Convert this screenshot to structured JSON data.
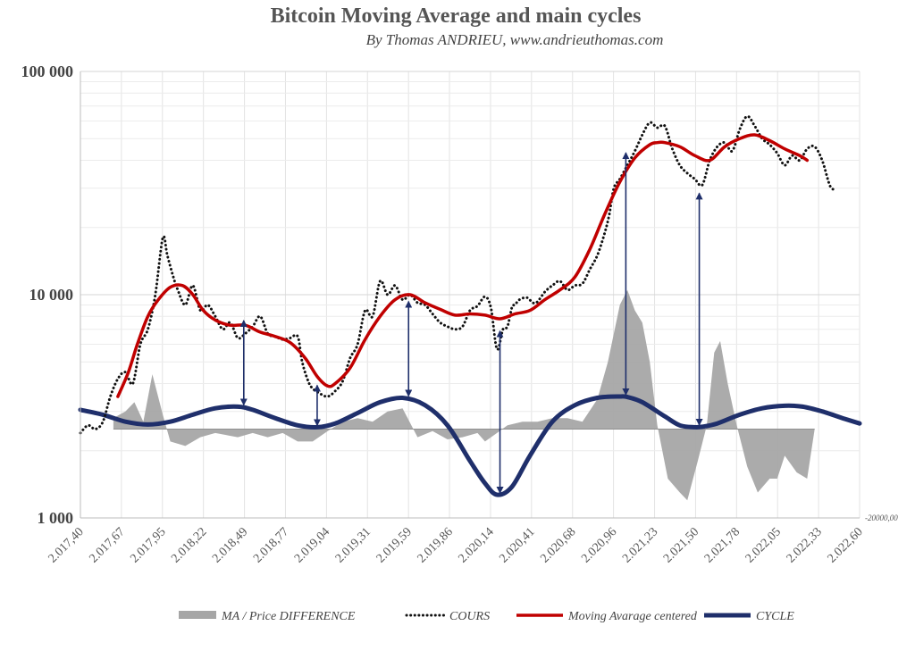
{
  "chart_data": {
    "type": "line",
    "title": "Bitcoin Moving Average and main cycles",
    "subtitle": "By Thomas ANDRIEU, www.andrieuthomas.com",
    "y_scale": "log",
    "ylim": [
      1000,
      100000
    ],
    "y_ticks": [
      {
        "value": 1000,
        "label": "1 000"
      },
      {
        "value": 10000,
        "label": "10 000"
      },
      {
        "value": 100000,
        "label": "100 000"
      }
    ],
    "secondary_axis_label": "-20000,00",
    "xlim": [
      2017.4,
      2022.6
    ],
    "x_ticks": [
      "2.017,40",
      "2.017,67",
      "2.017,95",
      "2.018,22",
      "2.018,49",
      "2.018,77",
      "2.019,04",
      "2.019,31",
      "2.019,59",
      "2.019,86",
      "2.020,14",
      "2.020,41",
      "2.020,68",
      "2.020,96",
      "2.021,23",
      "2.021,50",
      "2.021,78",
      "2.022,05",
      "2.022,33",
      "2.022,60"
    ],
    "grid": true,
    "legend_position": "bottom",
    "series": [
      {
        "name": "MA / Price DIFFERENCE",
        "style": "area",
        "color": "#a6a6a6",
        "baseline": 2500,
        "x": [
          2017.62,
          2017.7,
          2017.76,
          2017.82,
          2017.88,
          2017.95,
          2018.0,
          2018.1,
          2018.2,
          2018.3,
          2018.45,
          2018.55,
          2018.65,
          2018.75,
          2018.85,
          2018.95,
          2019.05,
          2019.15,
          2019.25,
          2019.35,
          2019.45,
          2019.55,
          2019.65,
          2019.75,
          2019.85,
          2019.95,
          2020.05,
          2020.1,
          2020.18,
          2020.25,
          2020.35,
          2020.45,
          2020.55,
          2020.65,
          2020.75,
          2020.85,
          2020.92,
          2021.0,
          2021.05,
          2021.1,
          2021.15,
          2021.2,
          2021.25,
          2021.32,
          2021.4,
          2021.45,
          2021.52,
          2021.58,
          2021.63,
          2021.67,
          2021.72,
          2021.78,
          2021.85,
          2021.92,
          2022.0,
          2022.05,
          2022.1,
          2022.18,
          2022.25,
          2022.3
        ],
        "y": [
          2800,
          3000,
          3300,
          2700,
          4400,
          2900,
          2200,
          2100,
          2300,
          2400,
          2300,
          2400,
          2300,
          2400,
          2200,
          2200,
          2450,
          2700,
          2800,
          2700,
          3000,
          3100,
          2300,
          2450,
          2250,
          2300,
          2400,
          2200,
          2400,
          2600,
          2700,
          2700,
          2800,
          2800,
          2700,
          3400,
          5000,
          9000,
          10500,
          8500,
          7500,
          5000,
          2600,
          1500,
          1300,
          1200,
          1800,
          2600,
          5500,
          6200,
          4000,
          2600,
          1700,
          1300,
          1500,
          1500,
          1900,
          1600,
          1500,
          2500
        ]
      },
      {
        "name": "COURS",
        "style": "dotted",
        "color": "#111111",
        "x": [
          2017.4,
          2017.45,
          2017.5,
          2017.55,
          2017.6,
          2017.65,
          2017.7,
          2017.75,
          2017.8,
          2017.85,
          2017.9,
          2017.95,
          2017.98,
          2018.02,
          2018.05,
          2018.1,
          2018.15,
          2018.2,
          2018.25,
          2018.3,
          2018.35,
          2018.4,
          2018.45,
          2018.5,
          2018.55,
          2018.6,
          2018.65,
          2018.7,
          2018.75,
          2018.8,
          2018.85,
          2018.88,
          2018.92,
          2018.95,
          2019.0,
          2019.05,
          2019.1,
          2019.15,
          2019.2,
          2019.25,
          2019.3,
          2019.35,
          2019.4,
          2019.45,
          2019.5,
          2019.55,
          2019.6,
          2019.65,
          2019.7,
          2019.75,
          2019.8,
          2019.85,
          2019.9,
          2019.95,
          2020.0,
          2020.05,
          2020.1,
          2020.14,
          2020.18,
          2020.22,
          2020.25,
          2020.28,
          2020.3,
          2020.33,
          2020.38,
          2020.42,
          2020.45,
          2020.5,
          2020.55,
          2020.6,
          2020.65,
          2020.7,
          2020.75,
          2020.8,
          2020.85,
          2020.9,
          2020.93,
          2020.96,
          2021.0,
          2021.05,
          2021.1,
          2021.15,
          2021.2,
          2021.25,
          2021.3,
          2021.35,
          2021.4,
          2021.45,
          2021.5,
          2021.55,
          2021.6,
          2021.65,
          2021.7,
          2021.75,
          2021.8,
          2021.85,
          2021.9,
          2021.95,
          2022.0,
          2022.05,
          2022.1,
          2022.15,
          2022.2,
          2022.25,
          2022.3,
          2022.35,
          2022.4,
          2022.43
        ],
        "y": [
          2400,
          2600,
          2500,
          2700,
          3500,
          4200,
          4500,
          4000,
          6000,
          7000,
          10000,
          18000,
          15000,
          12000,
          10500,
          9000,
          11000,
          8500,
          9000,
          8000,
          7000,
          7500,
          6400,
          6700,
          7200,
          8000,
          6700,
          6500,
          6300,
          6400,
          6500,
          5000,
          4100,
          3800,
          3600,
          3500,
          3700,
          4100,
          5200,
          6000,
          8500,
          8000,
          11500,
          10000,
          11000,
          9500,
          10000,
          9200,
          9000,
          8200,
          7500,
          7200,
          7000,
          7200,
          8500,
          8900,
          9800,
          8700,
          5700,
          7000,
          7200,
          8800,
          9000,
          9500,
          9700,
          9200,
          9300,
          10300,
          11000,
          11500,
          10500,
          11000,
          11200,
          13000,
          15000,
          19000,
          23000,
          30000,
          33000,
          38000,
          44000,
          52000,
          59000,
          56000,
          57000,
          45000,
          38000,
          35000,
          33000,
          31000,
          40000,
          46000,
          48000,
          44000,
          55000,
          63000,
          57000,
          50000,
          47000,
          43000,
          38000,
          42000,
          40000,
          45000,
          46000,
          40000,
          31000,
          29500
        ]
      },
      {
        "name": "Moving Avarage centered",
        "style": "line",
        "color": "#c00000",
        "x": [
          2017.65,
          2017.72,
          2017.78,
          2017.85,
          2017.92,
          2018.0,
          2018.08,
          2018.15,
          2018.22,
          2018.3,
          2018.4,
          2018.5,
          2018.6,
          2018.7,
          2018.8,
          2018.9,
          2018.98,
          2019.05,
          2019.1,
          2019.2,
          2019.3,
          2019.4,
          2019.5,
          2019.6,
          2019.7,
          2019.8,
          2019.9,
          2020.0,
          2020.1,
          2020.2,
          2020.3,
          2020.4,
          2020.5,
          2020.6,
          2020.7,
          2020.8,
          2020.9,
          2021.0,
          2021.1,
          2021.2,
          2021.25,
          2021.3,
          2021.4,
          2021.5,
          2021.6,
          2021.7,
          2021.8,
          2021.9,
          2022.0,
          2022.1,
          2022.2,
          2022.25
        ],
        "y": [
          3500,
          4500,
          6000,
          8000,
          9500,
          10800,
          11000,
          10000,
          8500,
          7700,
          7300,
          7300,
          6800,
          6500,
          6100,
          5200,
          4300,
          3900,
          4000,
          4700,
          6300,
          8000,
          9500,
          10000,
          9200,
          8600,
          8100,
          8200,
          8100,
          7800,
          8200,
          8500,
          9500,
          10500,
          12000,
          16000,
          23000,
          32000,
          41000,
          47000,
          48000,
          48000,
          46000,
          42000,
          40000,
          46000,
          50000,
          52000,
          49000,
          45000,
          42000,
          40000
        ]
      },
      {
        "name": "CYCLE",
        "style": "line",
        "color": "#1f2f6b",
        "note_values_read_off_log_axis": true,
        "x": [
          2017.4,
          2017.55,
          2017.7,
          2017.85,
          2018.0,
          2018.15,
          2018.3,
          2018.45,
          2018.55,
          2018.7,
          2018.85,
          2018.98,
          2019.1,
          2019.25,
          2019.4,
          2019.55,
          2019.7,
          2019.85,
          2020.0,
          2020.1,
          2020.18,
          2020.28,
          2020.4,
          2020.55,
          2020.7,
          2020.85,
          2021.0,
          2021.05,
          2021.15,
          2021.3,
          2021.4,
          2021.5,
          2021.55,
          2021.65,
          2021.8,
          2021.95,
          2022.1,
          2022.22,
          2022.35,
          2022.5,
          2022.6
        ],
        "y": [
          3050,
          2900,
          2700,
          2620,
          2700,
          2900,
          3100,
          3150,
          3050,
          2800,
          2600,
          2550,
          2650,
          2950,
          3300,
          3450,
          3200,
          2600,
          1800,
          1430,
          1270,
          1380,
          1900,
          2700,
          3200,
          3450,
          3500,
          3480,
          3300,
          2850,
          2600,
          2550,
          2560,
          2650,
          2900,
          3100,
          3180,
          3150,
          3000,
          2780,
          2650
        ]
      }
    ],
    "annotations": [
      {
        "type": "double-arrow",
        "x": 2018.49,
        "y_from": 3150,
        "y_to": 7800
      },
      {
        "type": "double-arrow",
        "x": 2018.98,
        "y_from": 2550,
        "y_to": 4000
      },
      {
        "type": "double-arrow",
        "x": 2019.59,
        "y_from": 3450,
        "y_to": 9500
      },
      {
        "type": "double-arrow",
        "x": 2020.2,
        "y_from": 1270,
        "y_to": 7000
      },
      {
        "type": "double-arrow",
        "x": 2021.04,
        "y_from": 3500,
        "y_to": 44000
      },
      {
        "type": "double-arrow",
        "x": 2021.53,
        "y_from": 2560,
        "y_to": 29000
      }
    ]
  }
}
